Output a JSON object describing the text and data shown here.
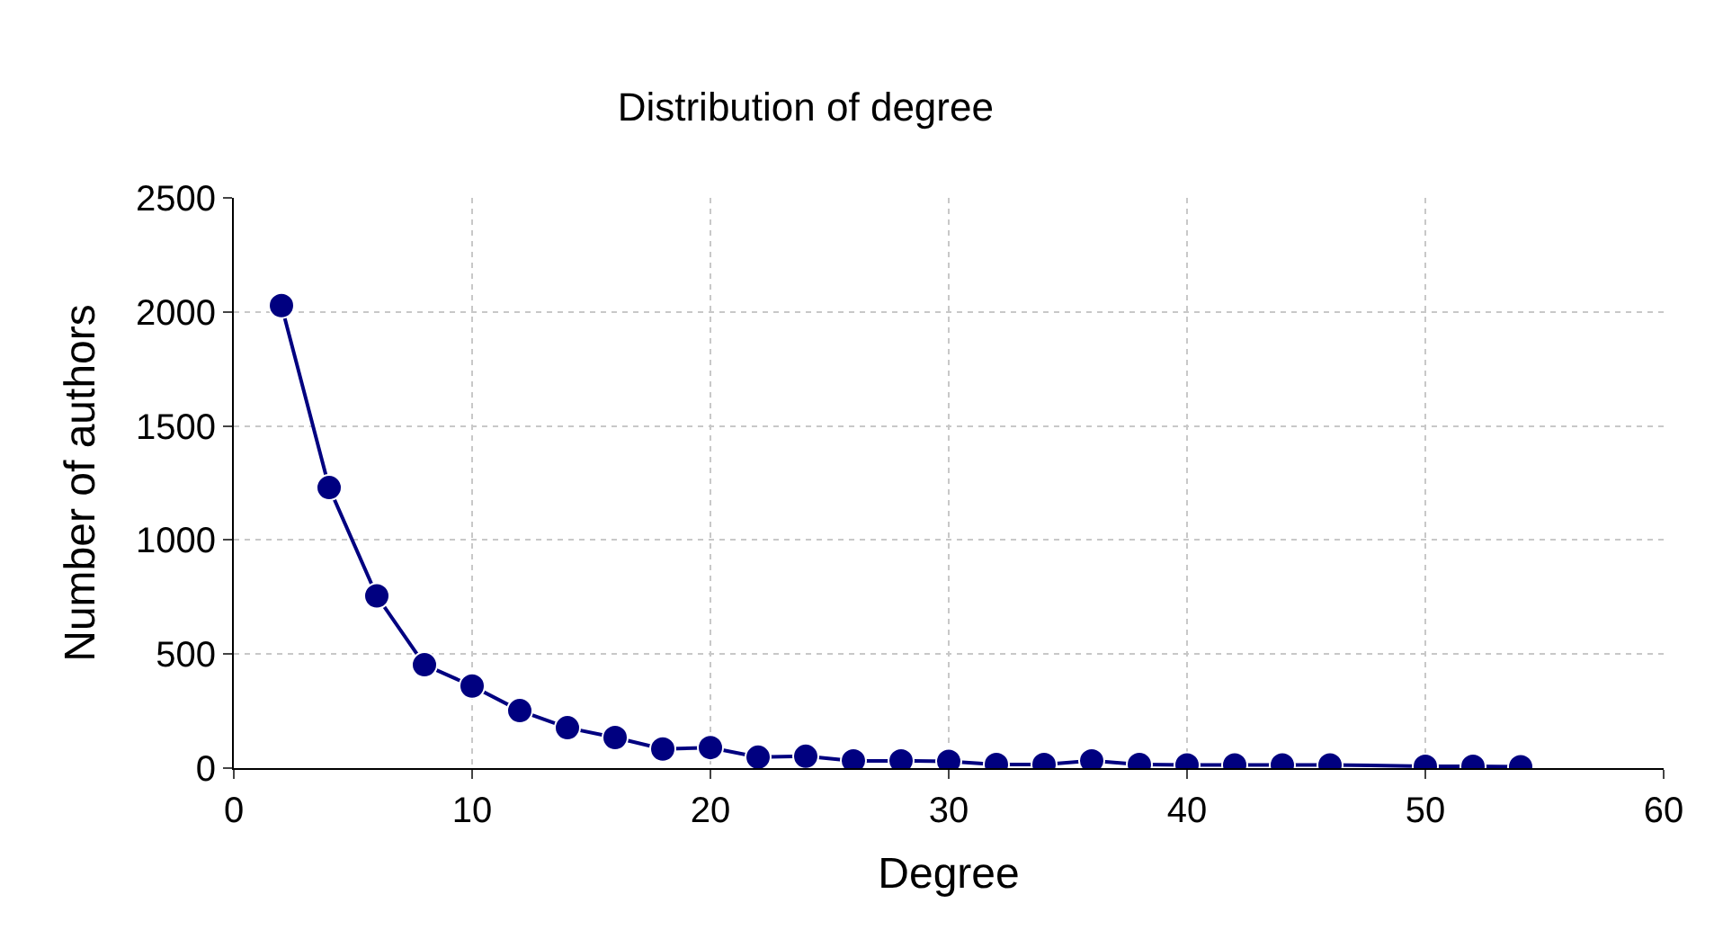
{
  "chart_data": {
    "type": "line",
    "title": "Distribution of degree",
    "xlabel": "Degree",
    "ylabel": "Number of authors",
    "x": [
      2,
      4,
      6,
      8,
      10,
      12,
      14,
      16,
      18,
      20,
      22,
      24,
      26,
      28,
      30,
      32,
      34,
      36,
      38,
      40,
      42,
      44,
      46,
      50,
      52,
      54
    ],
    "series": [
      {
        "color": "#000080",
        "values": [
          2028,
          1230,
          755,
          453,
          360,
          252,
          177,
          134,
          84,
          90,
          48,
          52,
          32,
          32,
          30,
          16,
          16,
          32,
          16,
          14,
          14,
          14,
          14,
          8,
          8,
          6
        ]
      }
    ],
    "xlim": [
      0,
      60
    ],
    "xticks": [
      0,
      10,
      20,
      30,
      40,
      50,
      60
    ],
    "ylim": [
      0,
      2500
    ],
    "yticks": [
      0,
      500,
      1000,
      1500,
      2000,
      2500
    ],
    "grid": true,
    "marker": "circle",
    "line_style": "solid",
    "legend": false
  }
}
